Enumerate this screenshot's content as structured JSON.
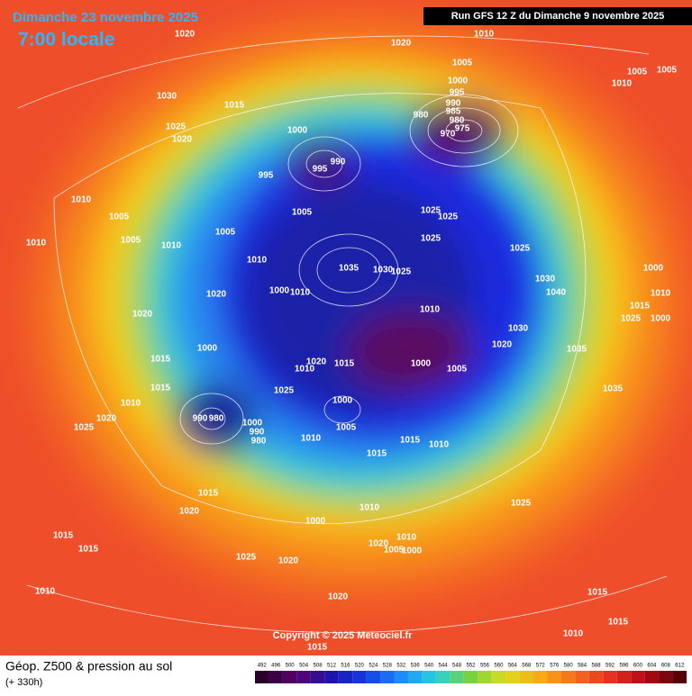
{
  "header": {
    "date": "Dimanche 23 novembre 2025",
    "time": "7:00 locale",
    "run": "Run GFS 12 Z du Dimanche 9 novembre 2025"
  },
  "copyright": "Copyright © 2025 Meteociel.fr",
  "legend": {
    "title": "Géop. Z500 & pression au sol",
    "subtitle": "(+ 330h)",
    "scale": [
      492,
      496,
      500,
      504,
      508,
      512,
      516,
      520,
      524,
      528,
      532,
      536,
      540,
      544,
      548,
      552,
      556,
      560,
      564,
      568,
      572,
      576,
      580,
      584,
      588,
      592,
      596,
      600,
      604,
      608,
      612
    ]
  },
  "isobar_labels": [
    1020,
    1020,
    1010,
    1005,
    1005,
    1005,
    1010,
    1030,
    1015,
    1025,
    1020,
    1000,
    995,
    995,
    990,
    1000,
    995,
    990,
    985,
    980,
    975,
    970,
    980,
    1005,
    1025,
    1025,
    1025,
    1025,
    1010,
    1005,
    1005,
    1010,
    1010,
    1005,
    1010,
    1035,
    1030,
    1025,
    1030,
    1040,
    1020,
    1000,
    1010,
    1000,
    1010,
    1015,
    1025,
    1000,
    1020,
    1010,
    1030,
    1020,
    1035,
    1000,
    1015,
    1020,
    1015,
    1010,
    1000,
    1005,
    1015,
    1025,
    1035,
    1010,
    1000,
    1005,
    1020,
    1025,
    990,
    980,
    1000,
    990,
    980,
    1010,
    1015,
    1010,
    1015,
    1015,
    1020,
    1025,
    1010,
    1000,
    1015,
    1015,
    1025,
    1020,
    1020,
    1005,
    1000,
    1010,
    1010,
    1020,
    1015,
    1015,
    1010,
    1015
  ]
}
